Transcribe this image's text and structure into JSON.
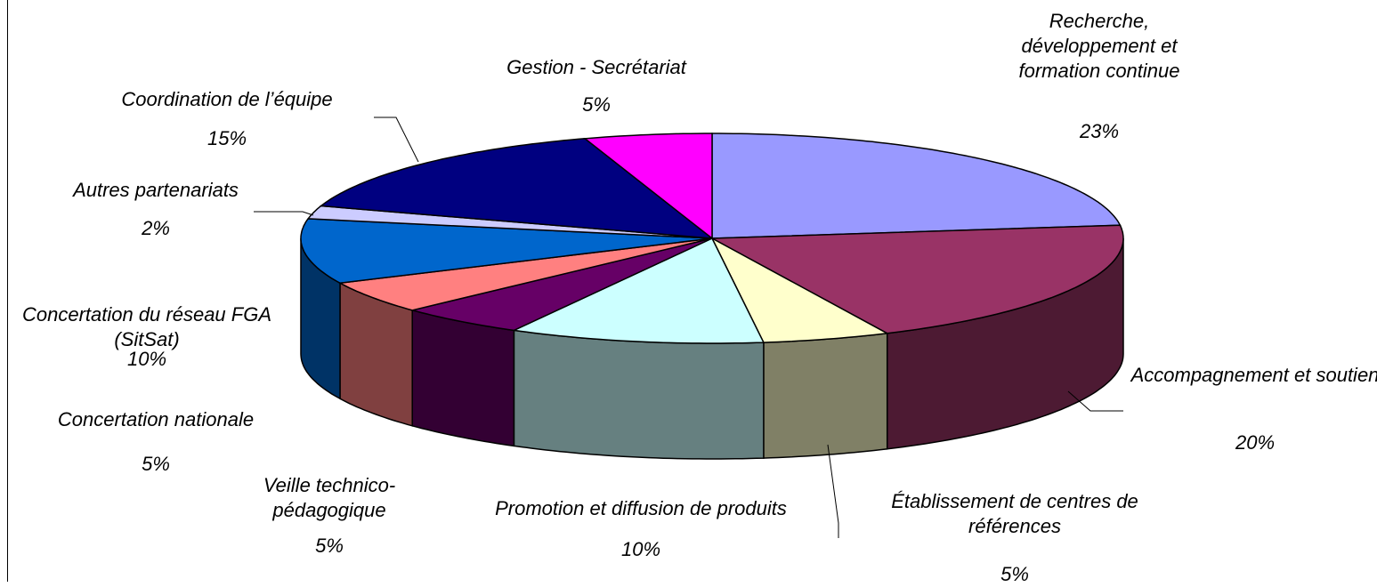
{
  "chart_data": {
    "type": "pie3d",
    "categories": [
      "Recherche, développement et formation continue",
      "Accompagnement et soutien",
      "Établissement de centres de références",
      "Promotion et diffusion de produits",
      "Veille technico-pédagogique",
      "Concertation nationale",
      "Concertation du réseau FGA (SitSat)",
      "Autres partenariats",
      "Coordination de l’équipe",
      "Gestion - Secrétariat"
    ],
    "values": [
      23,
      20,
      5,
      10,
      5,
      5,
      10,
      2,
      15,
      5
    ],
    "value_labels": [
      "23%",
      "20%",
      "5%",
      "10%",
      "5%",
      "5%",
      "10%",
      "2%",
      "15%",
      "5%"
    ],
    "colors": [
      "#9999ff",
      "#993366",
      "#ffffcc",
      "#ccffff",
      "#660066",
      "#ff8080",
      "#0066cc",
      "#ccccff",
      "#000080",
      "#ff00ff"
    ]
  }
}
